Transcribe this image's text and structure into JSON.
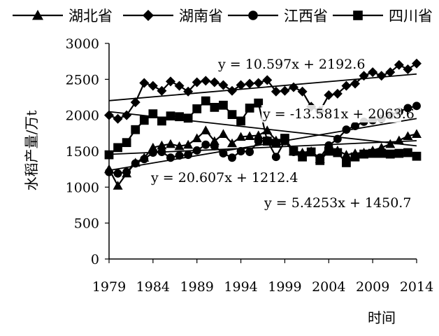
{
  "chart_data": {
    "type": "line",
    "title": "",
    "xlabel": "时间",
    "ylabel": "水稻产量/万t",
    "xlim": [
      1979,
      2014
    ],
    "ylim": [
      0,
      3000
    ],
    "x_ticks": [
      "1979",
      "1984",
      "1989",
      "1994",
      "1999",
      "2004",
      "2009",
      "2014"
    ],
    "y_ticks": [
      "0",
      "500",
      "1000",
      "1500",
      "2000",
      "2500",
      "3000"
    ],
    "grid": false,
    "legend_position": "top",
    "x": [
      1979,
      1980,
      1981,
      1982,
      1983,
      1984,
      1985,
      1986,
      1987,
      1988,
      1989,
      1990,
      1991,
      1992,
      1993,
      1994,
      1995,
      1996,
      1997,
      1998,
      1999,
      2000,
      2001,
      2002,
      2003,
      2004,
      2005,
      2006,
      2007,
      2008,
      2009,
      2010,
      2011,
      2012,
      2013,
      2014
    ],
    "series": [
      {
        "name": "湖北省",
        "marker": "triangle",
        "values": [
          1250,
          1020,
          1190,
          1340,
          1410,
          1550,
          1580,
          1600,
          1570,
          1590,
          1680,
          1790,
          1640,
          1740,
          1610,
          1700,
          1710,
          1720,
          1790,
          1650,
          1640,
          1500,
          1480,
          1500,
          1390,
          1520,
          1510,
          1450,
          1470,
          1480,
          1510,
          1550,
          1600,
          1650,
          1710,
          1740
        ]
      },
      {
        "name": "湖南省",
        "marker": "diamond",
        "values": [
          2000,
          1950,
          2000,
          2180,
          2450,
          2410,
          2340,
          2470,
          2410,
          2330,
          2460,
          2480,
          2460,
          2420,
          2340,
          2420,
          2440,
          2450,
          2490,
          2330,
          2340,
          2390,
          2330,
          2120,
          2060,
          2280,
          2300,
          2410,
          2440,
          2550,
          2600,
          2550,
          2600,
          2700,
          2640,
          2720
        ]
      },
      {
        "name": "江西省",
        "marker": "circle",
        "values": [
          1210,
          1190,
          1210,
          1330,
          1390,
          1480,
          1490,
          1410,
          1440,
          1450,
          1510,
          1590,
          1570,
          1470,
          1410,
          1500,
          1490,
          1640,
          1650,
          1420,
          1640,
          1490,
          1450,
          1490,
          1410,
          1580,
          1670,
          1800,
          1850,
          1910,
          1930,
          1950,
          2000,
          2050,
          2100,
          2130
        ]
      },
      {
        "name": "四川省",
        "marker": "square",
        "values": [
          1450,
          1550,
          1620,
          1800,
          1930,
          2020,
          1920,
          1990,
          1980,
          1960,
          2090,
          2200,
          2110,
          2140,
          2010,
          1920,
          2100,
          2170,
          1640,
          1610,
          1680,
          1500,
          1420,
          1490,
          1370,
          1500,
          1480,
          1340,
          1420,
          1460,
          1470,
          1470,
          1460,
          1470,
          1480,
          1430
        ]
      }
    ],
    "trendlines": [
      {
        "text": "y = 10.597x + 2192.6",
        "series": "湖南省",
        "slope": 10.597,
        "intercept": 2192.6
      },
      {
        "text": "y = -13.581x + 2063.6",
        "series": "四川省",
        "slope": -13.581,
        "intercept": 2063.6
      },
      {
        "text": "y = 20.607x + 1212.4",
        "series": "江西省",
        "slope": 20.607,
        "intercept": 1212.4
      },
      {
        "text": "y = 5.4253x + 1450.7",
        "series": "湖北省",
        "slope": 5.4253,
        "intercept": 1450.7
      }
    ]
  }
}
